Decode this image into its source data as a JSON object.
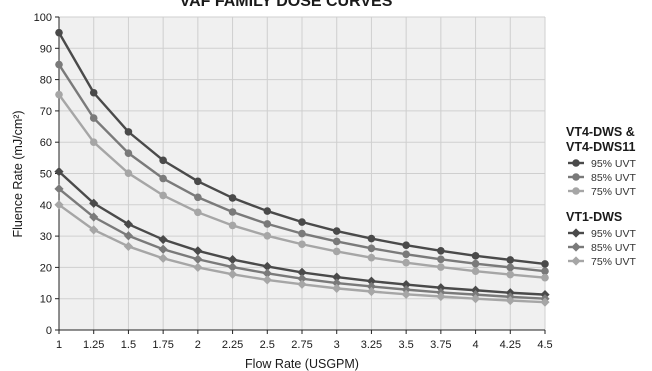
{
  "chart_data": {
    "type": "line",
    "title": "VAF FAMILY DOSE CURVES",
    "xlabel": "Flow Rate (USGPM)",
    "ylabel": "Fluence Rate (mJ/cm²)",
    "x": [
      1,
      1.25,
      1.5,
      1.75,
      2,
      2.25,
      2.5,
      2.75,
      3,
      3.25,
      3.5,
      3.75,
      4,
      4.25,
      4.5
    ],
    "x_tick_labels": [
      "1",
      "1.25",
      "1.5",
      "1.75",
      "2",
      "2.25",
      "2.5",
      "2.75",
      "3",
      "3.25",
      "3.5",
      "3.75",
      "4",
      "4.25",
      "4.5"
    ],
    "y_ticks": [
      0,
      10,
      20,
      30,
      40,
      50,
      60,
      70,
      80,
      90,
      100
    ],
    "xlim": [
      1,
      4.5
    ],
    "ylim": [
      0,
      100
    ],
    "grid": true,
    "legend_position": "right",
    "series": [
      {
        "group": "VT4-DWS & VT4-DWS11",
        "name": "95% UVT",
        "marker": "circle",
        "color": "#4a4a4a",
        "values": [
          95,
          75.8,
          63.3,
          54.2,
          47.5,
          42.2,
          38,
          34.5,
          31.6,
          29.2,
          27.1,
          25.3,
          23.7,
          22.4,
          21.1
        ]
      },
      {
        "group": "VT4-DWS & VT4-DWS11",
        "name": "85% UVT",
        "marker": "circle",
        "color": "#7a7a7a",
        "values": [
          84.8,
          67.7,
          56.5,
          48.4,
          42.4,
          37.7,
          33.9,
          30.8,
          28.3,
          26.1,
          24.2,
          22.6,
          21.2,
          20,
          18.8
        ]
      },
      {
        "group": "VT4-DWS & VT4-DWS11",
        "name": "75% UVT",
        "marker": "circle",
        "color": "#a6a6a6",
        "values": [
          75.2,
          60,
          50.1,
          43,
          37.6,
          33.4,
          30.1,
          27.4,
          25.1,
          23.1,
          21.5,
          20.1,
          18.8,
          17.7,
          16.7
        ]
      },
      {
        "group": "VT1-DWS",
        "name": "95% UVT",
        "marker": "diamond",
        "color": "#4a4a4a",
        "values": [
          50.6,
          40.5,
          33.8,
          28.9,
          25.3,
          22.5,
          20.3,
          18.4,
          16.9,
          15.6,
          14.5,
          13.5,
          12.7,
          11.9,
          11.3
        ]
      },
      {
        "group": "VT1-DWS",
        "name": "85% UVT",
        "marker": "diamond",
        "color": "#7a7a7a",
        "values": [
          45.1,
          36.1,
          30.1,
          25.8,
          22.6,
          20.1,
          18.1,
          16.4,
          15,
          13.9,
          12.9,
          12,
          11.3,
          10.6,
          10
        ]
      },
      {
        "group": "VT1-DWS",
        "name": "75% UVT",
        "marker": "diamond",
        "color": "#a6a6a6",
        "values": [
          40,
          32,
          26.7,
          22.9,
          20,
          17.8,
          16,
          14.6,
          13.3,
          12.3,
          11.4,
          10.7,
          10,
          9.4,
          8.9
        ]
      }
    ],
    "legend": {
      "groups": [
        {
          "title_lines": [
            "VT4-DWS &",
            "VT4-DWS11"
          ],
          "items": [
            "95% UVT",
            "85% UVT",
            "75% UVT"
          ]
        },
        {
          "title_lines": [
            "VT1-DWS"
          ],
          "items": [
            "95% UVT",
            "85% UVT",
            "75% UVT"
          ]
        }
      ]
    }
  }
}
